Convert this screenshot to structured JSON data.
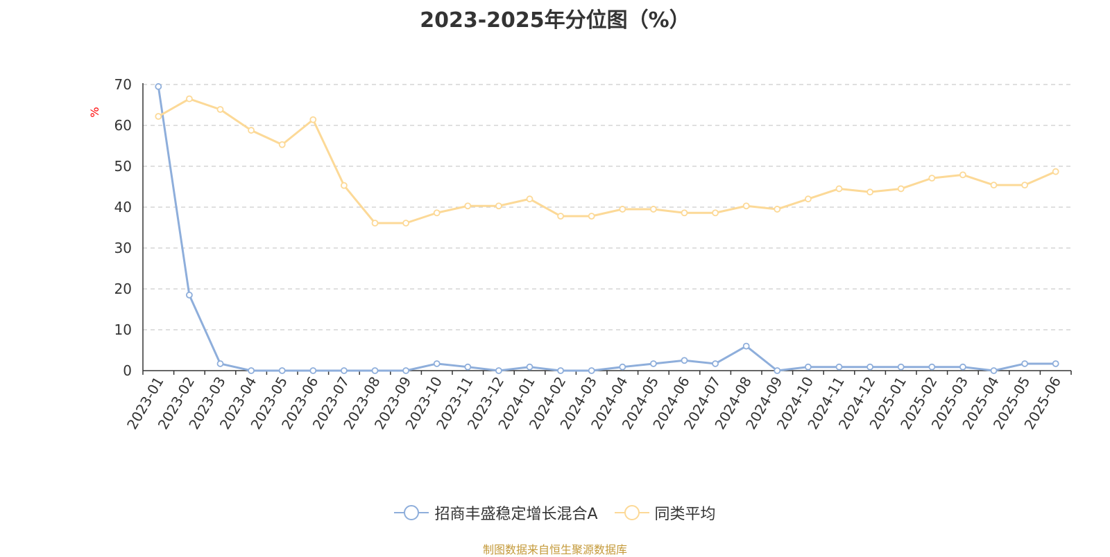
{
  "chart_data": {
    "type": "line",
    "title": "2023-2025年分位图（%）",
    "ylabel": "%",
    "xlabel": "",
    "ylim": [
      0,
      70
    ],
    "y_ticks": [
      0,
      10,
      20,
      30,
      40,
      50,
      60,
      70
    ],
    "grid": true,
    "legend_position": "bottom",
    "categories": [
      "2023-01",
      "2023-02",
      "2023-03",
      "2023-04",
      "2023-05",
      "2023-06",
      "2023-07",
      "2023-08",
      "2023-09",
      "2023-10",
      "2023-11",
      "2023-12",
      "2024-01",
      "2024-02",
      "2024-03",
      "2024-04",
      "2024-05",
      "2024-06",
      "2024-07",
      "2024-08",
      "2024-09",
      "2024-10",
      "2024-11",
      "2024-12",
      "2025-01",
      "2025-02",
      "2025-03",
      "2025-04",
      "2025-05",
      "2025-06"
    ],
    "series": [
      {
        "name": "招商丰盛稳定增长混合A",
        "color": "#8eaedb",
        "values": [
          69.5,
          18.5,
          1.7,
          0,
          0,
          0,
          0,
          0,
          0,
          1.7,
          0.9,
          0,
          0.9,
          0,
          0,
          0.9,
          1.7,
          2.5,
          1.7,
          6.0,
          0,
          0.9,
          0.9,
          0.9,
          0.9,
          0.9,
          0.9,
          0,
          1.7,
          1.7
        ]
      },
      {
        "name": "同类平均",
        "color": "#fcd997",
        "values": [
          62.2,
          66.5,
          63.9,
          58.8,
          55.3,
          61.4,
          45.3,
          36.1,
          36.1,
          38.6,
          40.3,
          40.3,
          42.0,
          37.8,
          37.8,
          39.5,
          39.5,
          38.6,
          38.6,
          40.3,
          39.5,
          42.0,
          44.5,
          43.7,
          44.5,
          47.1,
          47.9,
          45.4,
          45.4,
          48.7
        ]
      }
    ]
  },
  "source_note": "制图数据来自恒生聚源数据库"
}
